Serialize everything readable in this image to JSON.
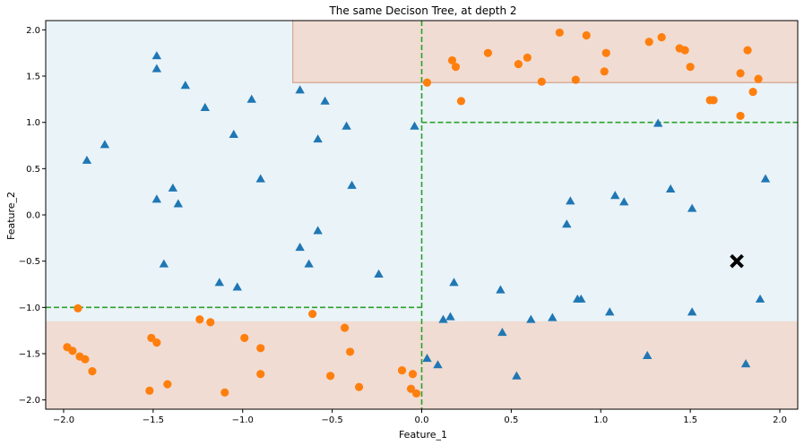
{
  "chart_data": {
    "type": "scatter",
    "title": "The same Decison Tree, at depth 2",
    "xlabel": "Feature_1",
    "ylabel": "Feature_2",
    "xlim": [
      -2.1,
      2.1
    ],
    "ylim": [
      -2.1,
      2.1
    ],
    "xticks": [
      -2.0,
      -1.5,
      -1.0,
      -0.5,
      0.0,
      0.5,
      1.0,
      1.5,
      2.0
    ],
    "yticks": [
      -2.0,
      -1.5,
      -1.0,
      -0.5,
      0.0,
      0.5,
      1.0,
      1.5,
      2.0
    ],
    "xtick_labels": [
      "−2.0",
      "−1.5",
      "−1.0",
      "−0.5",
      "0.0",
      "0.5",
      "1.0",
      "1.5",
      "2.0"
    ],
    "ytick_labels": [
      "−2.0",
      "−1.5",
      "−1.0",
      "−0.5",
      "0.0",
      "0.5",
      "1.0",
      "1.5",
      "2.0"
    ],
    "grid": false,
    "colors": {
      "triangle": "#1f77b4",
      "circle": "#ff7f0e",
      "region_blue": "#eaf3f8",
      "region_orange": "#f0dcd2",
      "split_line": "#2ca02c",
      "query_marker": "#000000"
    },
    "regions": [
      {
        "class": "orange",
        "x": [
          -0.72,
          2.1
        ],
        "y": [
          1.43,
          2.1
        ]
      },
      {
        "class": "orange",
        "x": [
          -2.1,
          2.1
        ],
        "y": [
          -2.1,
          -1.15
        ]
      }
    ],
    "split_lines": [
      {
        "orientation": "vertical",
        "x": 0.0,
        "y": [
          -2.1,
          2.1
        ]
      },
      {
        "orientation": "horizontal",
        "y": -1.0,
        "x": [
          -2.1,
          0.0
        ]
      },
      {
        "orientation": "horizontal",
        "y": 1.0,
        "x": [
          0.0,
          2.1
        ]
      }
    ],
    "series": [
      {
        "marker": "triangle",
        "points": [
          [
            -1.48,
            1.72
          ],
          [
            -1.48,
            1.58
          ],
          [
            -1.32,
            1.4
          ],
          [
            -1.21,
            1.16
          ],
          [
            -0.95,
            1.25
          ],
          [
            -0.68,
            1.35
          ],
          [
            -0.54,
            1.23
          ],
          [
            -0.42,
            0.96
          ],
          [
            -0.58,
            0.82
          ],
          [
            -1.05,
            0.87
          ],
          [
            -0.9,
            0.39
          ],
          [
            -0.39,
            0.32
          ],
          [
            -1.87,
            0.59
          ],
          [
            -1.77,
            0.76
          ],
          [
            -1.39,
            0.29
          ],
          [
            -1.48,
            0.17
          ],
          [
            -1.36,
            0.12
          ],
          [
            -0.58,
            -0.17
          ],
          [
            -0.68,
            -0.35
          ],
          [
            -0.63,
            -0.53
          ],
          [
            -1.44,
            -0.53
          ],
          [
            -0.24,
            -0.64
          ],
          [
            -1.13,
            -0.73
          ],
          [
            -1.03,
            -0.78
          ],
          [
            -0.04,
            0.96
          ],
          [
            1.32,
            0.99
          ],
          [
            1.08,
            0.21
          ],
          [
            0.83,
            0.15
          ],
          [
            1.13,
            0.14
          ],
          [
            1.39,
            0.28
          ],
          [
            1.51,
            0.07
          ],
          [
            1.92,
            0.39
          ],
          [
            0.81,
            -0.1
          ],
          [
            0.18,
            -0.73
          ],
          [
            0.44,
            -0.81
          ],
          [
            0.87,
            -0.91
          ],
          [
            0.89,
            -0.91
          ],
          [
            1.89,
            -0.91
          ],
          [
            0.16,
            -1.1
          ],
          [
            0.12,
            -1.13
          ],
          [
            0.61,
            -1.13
          ],
          [
            0.73,
            -1.11
          ],
          [
            1.05,
            -1.05
          ],
          [
            1.51,
            -1.05
          ],
          [
            0.45,
            -1.27
          ],
          [
            0.03,
            -1.55
          ],
          [
            0.09,
            -1.62
          ],
          [
            1.26,
            -1.52
          ],
          [
            0.53,
            -1.74
          ],
          [
            1.81,
            -1.61
          ]
        ]
      },
      {
        "marker": "circle",
        "points": [
          [
            0.77,
            1.97
          ],
          [
            0.92,
            1.94
          ],
          [
            1.34,
            1.92
          ],
          [
            1.27,
            1.87
          ],
          [
            1.44,
            1.8
          ],
          [
            1.47,
            1.78
          ],
          [
            1.82,
            1.78
          ],
          [
            0.37,
            1.75
          ],
          [
            1.03,
            1.75
          ],
          [
            0.17,
            1.67
          ],
          [
            0.59,
            1.7
          ],
          [
            0.54,
            1.63
          ],
          [
            0.19,
            1.6
          ],
          [
            1.5,
            1.6
          ],
          [
            1.02,
            1.55
          ],
          [
            1.78,
            1.53
          ],
          [
            0.86,
            1.46
          ],
          [
            0.67,
            1.44
          ],
          [
            1.88,
            1.47
          ],
          [
            0.03,
            1.43
          ],
          [
            1.85,
            1.33
          ],
          [
            0.22,
            1.23
          ],
          [
            1.61,
            1.24
          ],
          [
            1.63,
            1.24
          ],
          [
            1.78,
            1.07
          ],
          [
            -1.92,
            -1.01
          ],
          [
            -0.61,
            -1.07
          ],
          [
            -1.24,
            -1.13
          ],
          [
            -1.18,
            -1.16
          ],
          [
            -0.43,
            -1.22
          ],
          [
            -1.51,
            -1.33
          ],
          [
            -1.48,
            -1.38
          ],
          [
            -0.99,
            -1.33
          ],
          [
            -1.98,
            -1.43
          ],
          [
            -1.95,
            -1.47
          ],
          [
            -0.9,
            -1.44
          ],
          [
            -0.4,
            -1.48
          ],
          [
            -1.91,
            -1.53
          ],
          [
            -1.88,
            -1.56
          ],
          [
            -1.84,
            -1.69
          ],
          [
            -0.9,
            -1.72
          ],
          [
            -0.51,
            -1.74
          ],
          [
            -0.11,
            -1.68
          ],
          [
            -0.05,
            -1.72
          ],
          [
            -1.42,
            -1.83
          ],
          [
            -0.35,
            -1.86
          ],
          [
            -1.52,
            -1.9
          ],
          [
            -1.1,
            -1.92
          ],
          [
            -0.06,
            -1.88
          ],
          [
            -0.03,
            -1.93
          ]
        ]
      },
      {
        "marker": "x",
        "points": [
          [
            1.76,
            -0.5
          ]
        ]
      }
    ]
  }
}
